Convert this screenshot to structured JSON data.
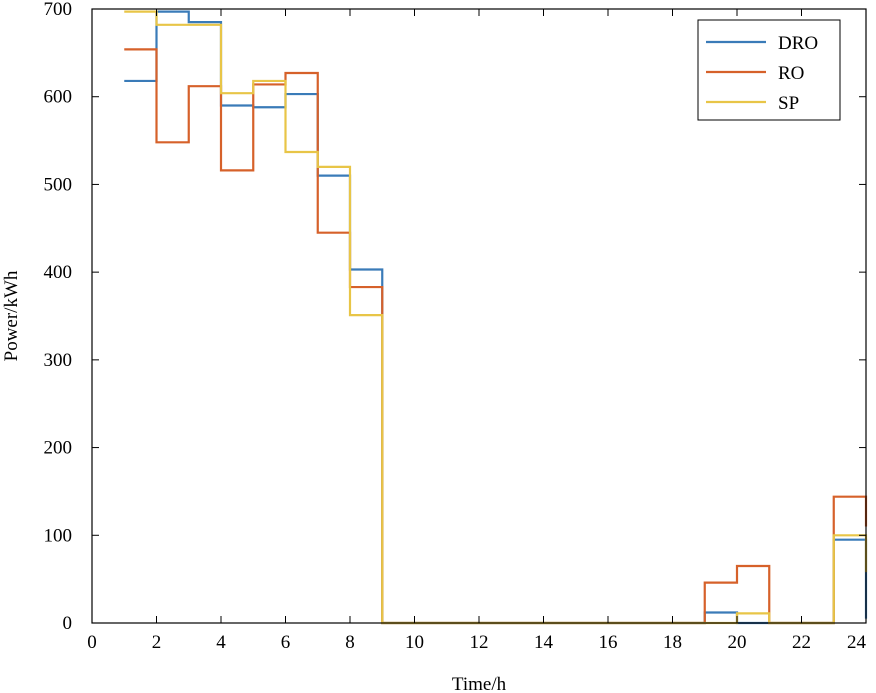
{
  "chart_data": {
    "type": "line",
    "step": "post",
    "title": "",
    "xlabel": "Time/h",
    "ylabel": "Power/kWh",
    "xlim": [
      0,
      24
    ],
    "ylim": [
      0,
      700
    ],
    "xticks": [
      0,
      2,
      4,
      6,
      8,
      10,
      12,
      14,
      16,
      18,
      20,
      22,
      24
    ],
    "yticks": [
      0,
      100,
      200,
      300,
      400,
      500,
      600,
      700
    ],
    "grid": false,
    "legend_position": "top-right",
    "x": [
      1,
      2,
      3,
      4,
      5,
      6,
      7,
      8,
      9,
      10,
      11,
      12,
      13,
      14,
      15,
      16,
      17,
      18,
      19,
      20,
      21,
      22,
      23,
      24
    ],
    "series": [
      {
        "name": "DRO",
        "color": "#3a7bb8",
        "values": [
          618,
          697,
          685,
          590,
          588,
          603,
          510,
          403,
          0,
          0,
          0,
          0,
          0,
          0,
          0,
          0,
          0,
          0,
          12,
          0,
          0,
          0,
          95,
          5
        ]
      },
      {
        "name": "RO",
        "color": "#d6612a",
        "values": [
          654,
          548,
          612,
          516,
          614,
          627,
          445,
          383,
          0,
          0,
          0,
          0,
          0,
          0,
          0,
          0,
          0,
          0,
          46,
          65,
          0,
          0,
          144,
          110
        ]
      },
      {
        "name": "SP",
        "color": "#e8c547",
        "values": [
          697,
          682,
          682,
          604,
          618,
          537,
          520,
          351,
          0,
          0,
          0,
          0,
          0,
          0,
          0,
          0,
          0,
          0,
          0,
          11,
          0,
          0,
          100,
          58
        ]
      }
    ]
  }
}
